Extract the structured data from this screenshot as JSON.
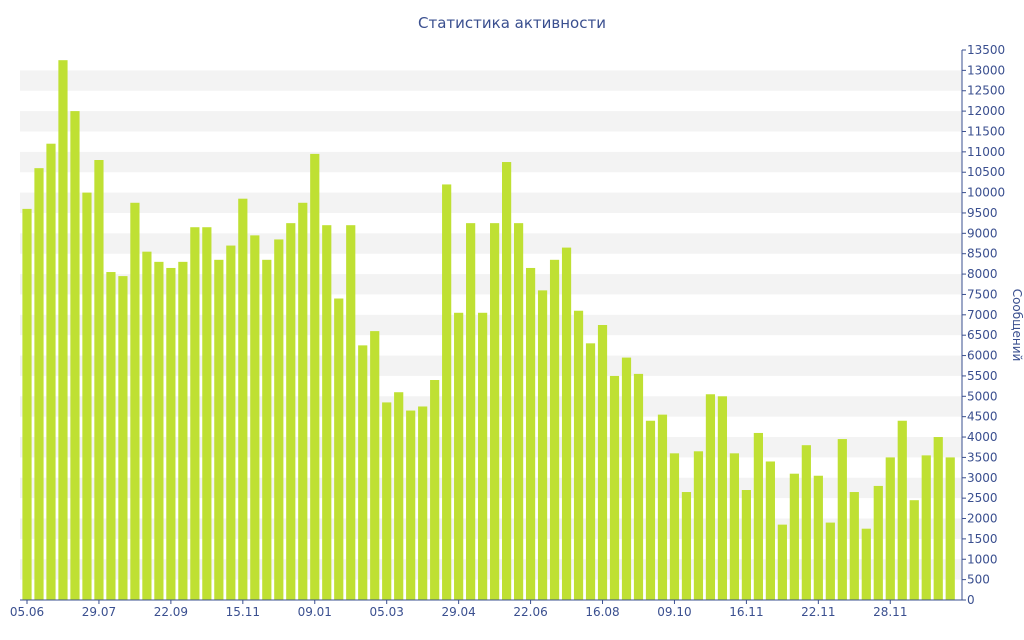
{
  "chart_data": {
    "type": "bar",
    "title": "Статистика активности",
    "ylabel": "Сообщений",
    "ylim": [
      0,
      13500
    ],
    "y_tick_step": 500,
    "x_tick_labels": [
      "05.06",
      "29.07",
      "22.09",
      "15.11",
      "09.01",
      "05.03",
      "29.04",
      "22.06",
      "16.08",
      "09.10",
      "16.11",
      "22.11",
      "28.11"
    ],
    "x_tick_bar_index": [
      0,
      6,
      12,
      18,
      24,
      30,
      36,
      42,
      48,
      54,
      60,
      66,
      72
    ],
    "grid": "alternating horizontal bands",
    "y_axis_side": "right",
    "colors": {
      "bar": "#bfe033",
      "text": "#3a4f8f",
      "axis": "#3a4f8f",
      "band": "#f3f3f3"
    },
    "values": [
      9600,
      10600,
      11200,
      13250,
      12000,
      10000,
      10800,
      8050,
      7950,
      9750,
      8550,
      8300,
      8150,
      8300,
      9150,
      9150,
      8350,
      8700,
      9850,
      8950,
      8350,
      8850,
      9250,
      9750,
      10950,
      9200,
      7400,
      9200,
      6250,
      6600,
      4850,
      5100,
      4650,
      4750,
      5400,
      10200,
      7050,
      9250,
      7050,
      9250,
      10750,
      9250,
      8150,
      7600,
      8350,
      8650,
      7100,
      6300,
      6750,
      5500,
      5950,
      5550,
      4400,
      4550,
      3600,
      2650,
      3650,
      5050,
      5000,
      3600,
      2700,
      4100,
      3400,
      1850,
      3100,
      3800,
      3050,
      1900,
      3950,
      2650,
      1750,
      2800,
      3500,
      4400,
      2450,
      3550,
      4000,
      3500
    ]
  }
}
